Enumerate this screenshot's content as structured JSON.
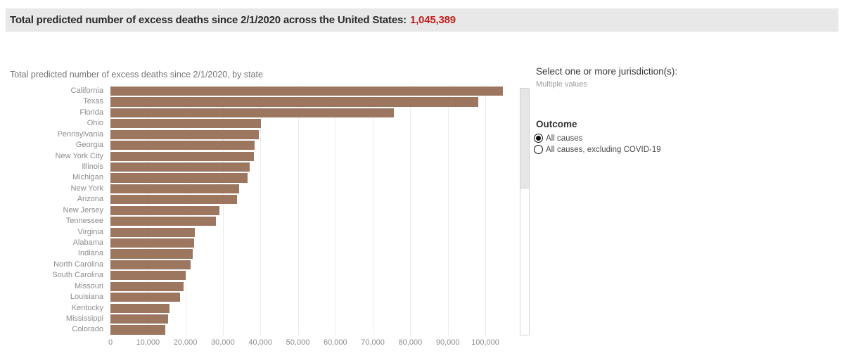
{
  "colors": {
    "bar": "#9d7660",
    "header_bg": "#e8e8e8",
    "header_text": "#2b2b2b",
    "total_red": "#c21e1e",
    "gridline": "#ececec",
    "axis_label_gray": "#8c8c8c",
    "title_gray": "#757575"
  },
  "header": {
    "text": "Total predicted number of excess deaths since 2/1/2020 across the United States:",
    "value": "1,045,389"
  },
  "chart_data": {
    "type": "bar",
    "orientation": "horizontal",
    "title": "Total predicted number of excess deaths since 2/1/2020, by state",
    "categories": [
      "California",
      "Texas",
      "Florida",
      "Ohio",
      "Pennsylvania",
      "Georgia",
      "New York City",
      "Illinois",
      "Michigan",
      "New York",
      "Arizona",
      "New Jersey",
      "Tennessee",
      "Virginia",
      "Alabama",
      "Indiana",
      "North Carolina",
      "South Carolina",
      "Missouri",
      "Louisiana",
      "Kentucky",
      "Mississippi",
      "Colorado"
    ],
    "values": [
      104700,
      98200,
      75700,
      40100,
      39600,
      38500,
      38300,
      37200,
      36600,
      34400,
      33700,
      29000,
      28100,
      22500,
      22400,
      22000,
      21300,
      20100,
      19500,
      18500,
      15700,
      15400,
      14700
    ],
    "xlabel": "",
    "ylabel": "",
    "xlim": [
      0,
      106000
    ],
    "grid": "vertical",
    "legend": "none",
    "x_ticks": [
      {
        "value": 0,
        "label": "0"
      },
      {
        "value": 10000,
        "label": "10,000"
      },
      {
        "value": 20000,
        "label": "20,000"
      },
      {
        "value": 30000,
        "label": "30,000"
      },
      {
        "value": 40000,
        "label": "40,000"
      },
      {
        "value": 50000,
        "label": "50,000"
      },
      {
        "value": 60000,
        "label": "60,000"
      },
      {
        "value": 70000,
        "label": "70,000"
      },
      {
        "value": 80000,
        "label": "80,000"
      },
      {
        "value": 90000,
        "label": "90,000"
      },
      {
        "value": 100000,
        "label": "100,000"
      }
    ]
  },
  "sidebar": {
    "jurisdiction_label": "Select one or more jurisdiction(s):",
    "jurisdiction_value": "Multiple values",
    "outcome_label": "Outcome",
    "outcome_options": [
      {
        "label": "All causes",
        "selected": true
      },
      {
        "label": "All causes, excluding COVID-19",
        "selected": false
      }
    ]
  }
}
